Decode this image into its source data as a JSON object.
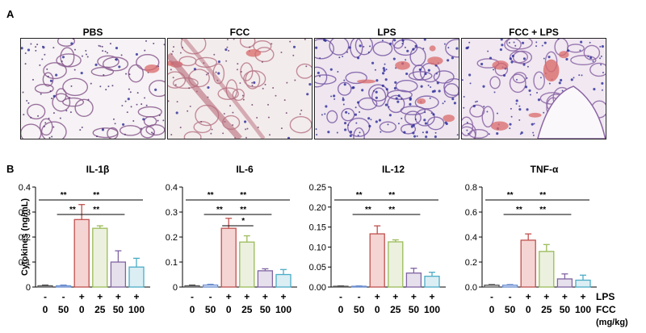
{
  "panel_labels": {
    "a": "A",
    "b": "B"
  },
  "micrographs": [
    {
      "title": "PBS"
    },
    {
      "title": "FCC"
    },
    {
      "title": "LPS"
    },
    {
      "title": "FCC + LPS"
    }
  ],
  "shared": {
    "ylabel": "Cytokines (ng/mL)",
    "lps_row": [
      "-",
      "-",
      "+",
      "+",
      "+",
      "+"
    ],
    "fcc_row": [
      "0",
      "50",
      "0",
      "25",
      "50",
      "100"
    ],
    "lps_label": "LPS",
    "fcc_label": "FCC",
    "fcc_unit": "(mg/kg)",
    "bar_colors": [
      {
        "fill": "#ebebeb",
        "stroke": "#555555"
      },
      {
        "fill": "#e8eef8",
        "stroke": "#6d8fd0"
      },
      {
        "fill": "#f5d5d3",
        "stroke": "#c0504d"
      },
      {
        "fill": "#ebf1de",
        "stroke": "#9bbb59"
      },
      {
        "fill": "#e6e0ec",
        "stroke": "#8064a2"
      },
      {
        "fill": "#dbeef4",
        "stroke": "#4bacc6"
      }
    ]
  },
  "chart_data": [
    {
      "type": "bar",
      "title": "IL-1β",
      "categories": [
        "0",
        "50",
        "0",
        "25",
        "50",
        "100"
      ],
      "values": [
        0.005,
        0.005,
        0.27,
        0.235,
        0.1,
        0.08
      ],
      "errors": [
        0.003,
        0.003,
        0.06,
        0.01,
        0.045,
        0.035
      ],
      "ylim": [
        0,
        0.4
      ],
      "yticks": [
        "0",
        "0.1",
        "0.2",
        "0.3",
        "0.4"
      ],
      "significance": [
        {
          "from": 0,
          "to": 2,
          "label": "**"
        },
        {
          "from": 2,
          "to": 5,
          "label": "**"
        },
        {
          "from": 1,
          "to": 2,
          "label": "**"
        },
        {
          "from": 2,
          "to": 4,
          "label": "**"
        }
      ]
    },
    {
      "type": "bar",
      "title": "IL-6",
      "categories": [
        "0",
        "50",
        "0",
        "25",
        "50",
        "100"
      ],
      "values": [
        0.005,
        0.008,
        0.235,
        0.18,
        0.065,
        0.05
      ],
      "errors": [
        0.003,
        0.003,
        0.04,
        0.025,
        0.008,
        0.02
      ],
      "ylim": [
        0,
        0.4
      ],
      "yticks": [
        "0",
        "0.1",
        "0.2",
        "0.3",
        "0.4"
      ],
      "significance": [
        {
          "from": 0,
          "to": 2,
          "label": "**"
        },
        {
          "from": 2,
          "to": 5,
          "label": "**"
        },
        {
          "from": 1,
          "to": 2,
          "label": "**"
        },
        {
          "from": 2,
          "to": 4,
          "label": "**"
        },
        {
          "from": 2,
          "to": 3,
          "label": "*"
        }
      ]
    },
    {
      "type": "bar",
      "title": "IL-12",
      "categories": [
        "0",
        "50",
        "0",
        "25",
        "50",
        "100"
      ],
      "values": [
        0.002,
        0.002,
        0.133,
        0.113,
        0.035,
        0.027
      ],
      "errors": [
        0.001,
        0.001,
        0.02,
        0.005,
        0.012,
        0.01
      ],
      "ylim": [
        0,
        0.25
      ],
      "yticks": [
        "0.00",
        "0.05",
        "0.10",
        "0.15",
        "0.20",
        "0.25"
      ],
      "significance": [
        {
          "from": 0,
          "to": 2,
          "label": "**"
        },
        {
          "from": 2,
          "to": 5,
          "label": "**"
        },
        {
          "from": 1,
          "to": 2,
          "label": "**"
        },
        {
          "from": 2,
          "to": 4,
          "label": "**"
        }
      ]
    },
    {
      "type": "bar",
      "title": "TNF-α",
      "categories": [
        "0",
        "50",
        "0",
        "25",
        "50",
        "100"
      ],
      "values": [
        0.015,
        0.015,
        0.375,
        0.285,
        0.065,
        0.055
      ],
      "errors": [
        0.005,
        0.005,
        0.05,
        0.055,
        0.04,
        0.04
      ],
      "ylim": [
        0,
        0.8
      ],
      "yticks": [
        "0.0",
        "0.2",
        "0.4",
        "0.6",
        "0.8"
      ],
      "significance": [
        {
          "from": 0,
          "to": 2,
          "label": "**"
        },
        {
          "from": 2,
          "to": 5,
          "label": "**"
        },
        {
          "from": 1,
          "to": 2,
          "label": "**"
        },
        {
          "from": 2,
          "to": 4,
          "label": "**"
        }
      ]
    }
  ]
}
